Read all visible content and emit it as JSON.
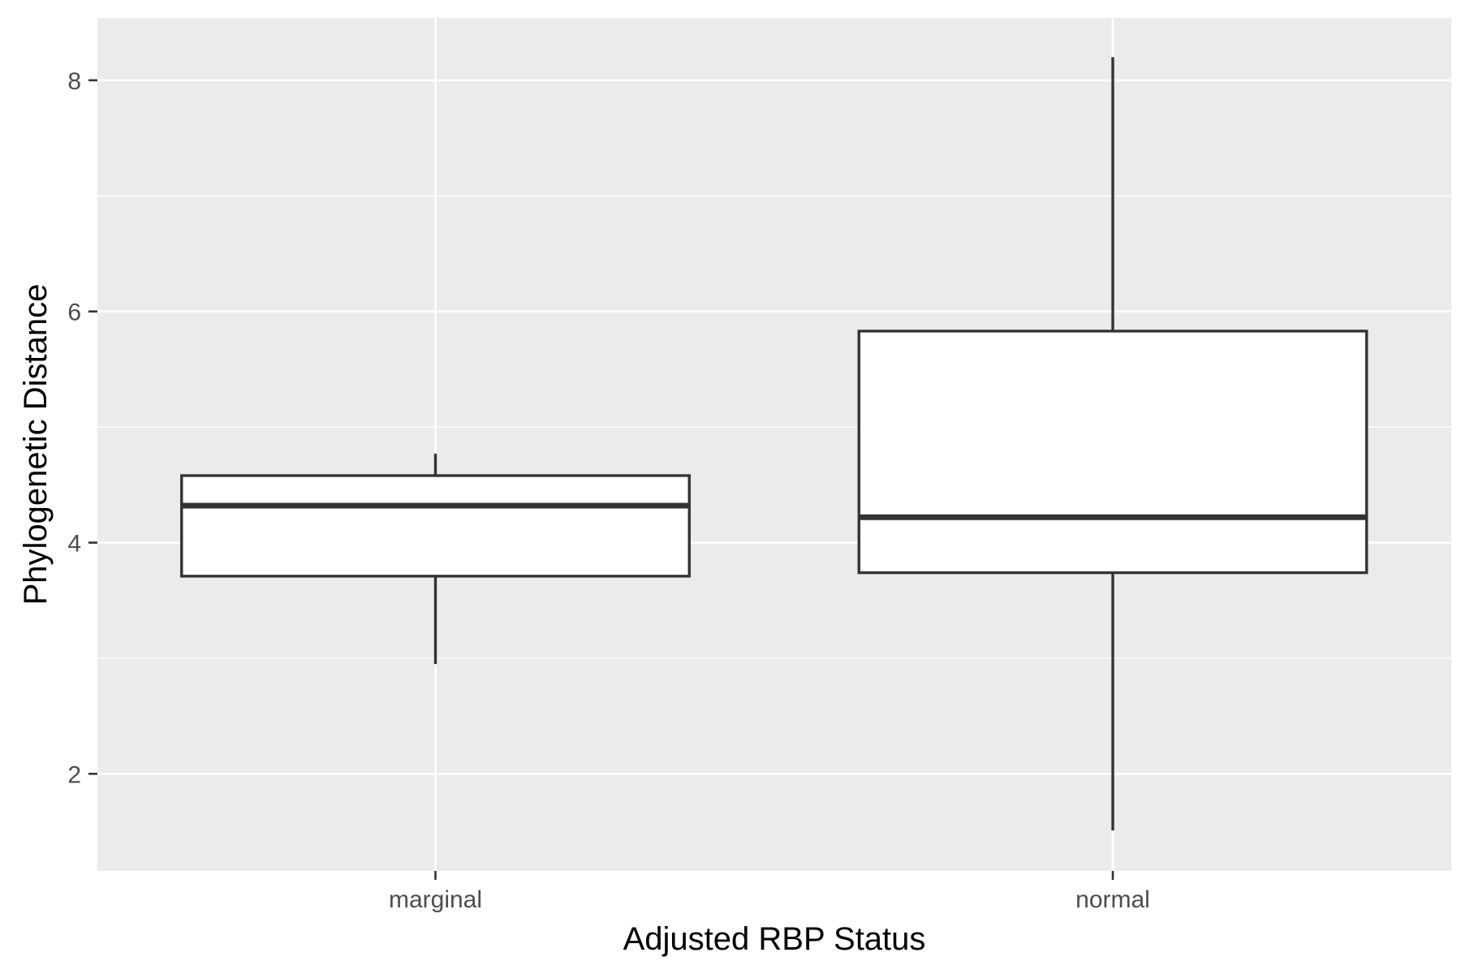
{
  "chart_data": {
    "type": "boxplot",
    "title": "",
    "xlabel": "Adjusted RBP Status",
    "ylabel": "Phylogenetic Distance",
    "categories": [
      "marginal",
      "normal"
    ],
    "boxes": [
      {
        "category": "marginal",
        "whisker_low": 2.95,
        "q1": 3.71,
        "median": 4.32,
        "q3": 4.58,
        "whisker_high": 4.77
      },
      {
        "category": "normal",
        "whisker_low": 1.51,
        "q1": 3.74,
        "median": 4.22,
        "q3": 5.83,
        "whisker_high": 8.2
      }
    ],
    "ylim": [
      1.16,
      8.54
    ],
    "yticks": [
      2,
      4,
      6,
      8
    ],
    "grid": true,
    "legend": "none",
    "colors": {
      "panel": "#ebebeb",
      "grid": "#ffffff",
      "box_fill": "#ffffff",
      "box_stroke": "#333333",
      "tick": "#333333"
    }
  }
}
